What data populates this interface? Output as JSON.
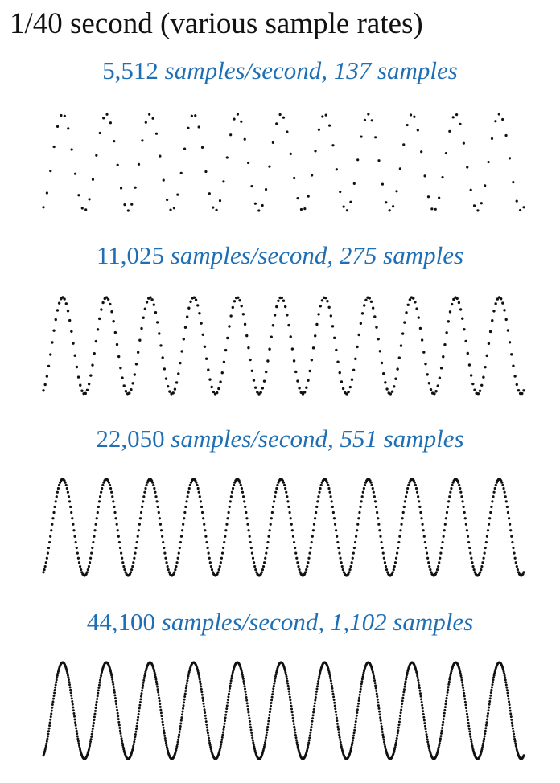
{
  "title": "1/40 second (various sample rates)",
  "label_color": "#1f6fb5",
  "dot_color": "#111111",
  "chart_data": [
    {
      "type": "scatter",
      "rate_label": "5,512",
      "rest_label": " samples/second, 137 samples",
      "sample_rate": 5512,
      "sample_count": 137,
      "duration_s": 0.025,
      "cycles": 11,
      "ylim": [
        -1,
        1
      ]
    },
    {
      "type": "scatter",
      "rate_label": "11,025",
      "rest_label": " samples/second, 275 samples",
      "sample_rate": 11025,
      "sample_count": 275,
      "duration_s": 0.025,
      "cycles": 11,
      "ylim": [
        -1,
        1
      ]
    },
    {
      "type": "scatter",
      "rate_label": "22,050",
      "rest_label": " samples/second, 551 samples",
      "sample_rate": 22050,
      "sample_count": 551,
      "duration_s": 0.025,
      "cycles": 11,
      "ylim": [
        -1,
        1
      ]
    },
    {
      "type": "scatter",
      "rate_label": "44,100",
      "rest_label": " samples/second, 1,102 samples",
      "sample_rate": 44100,
      "sample_count": 1102,
      "duration_s": 0.025,
      "cycles": 11,
      "ylim": [
        -1,
        1
      ]
    }
  ]
}
